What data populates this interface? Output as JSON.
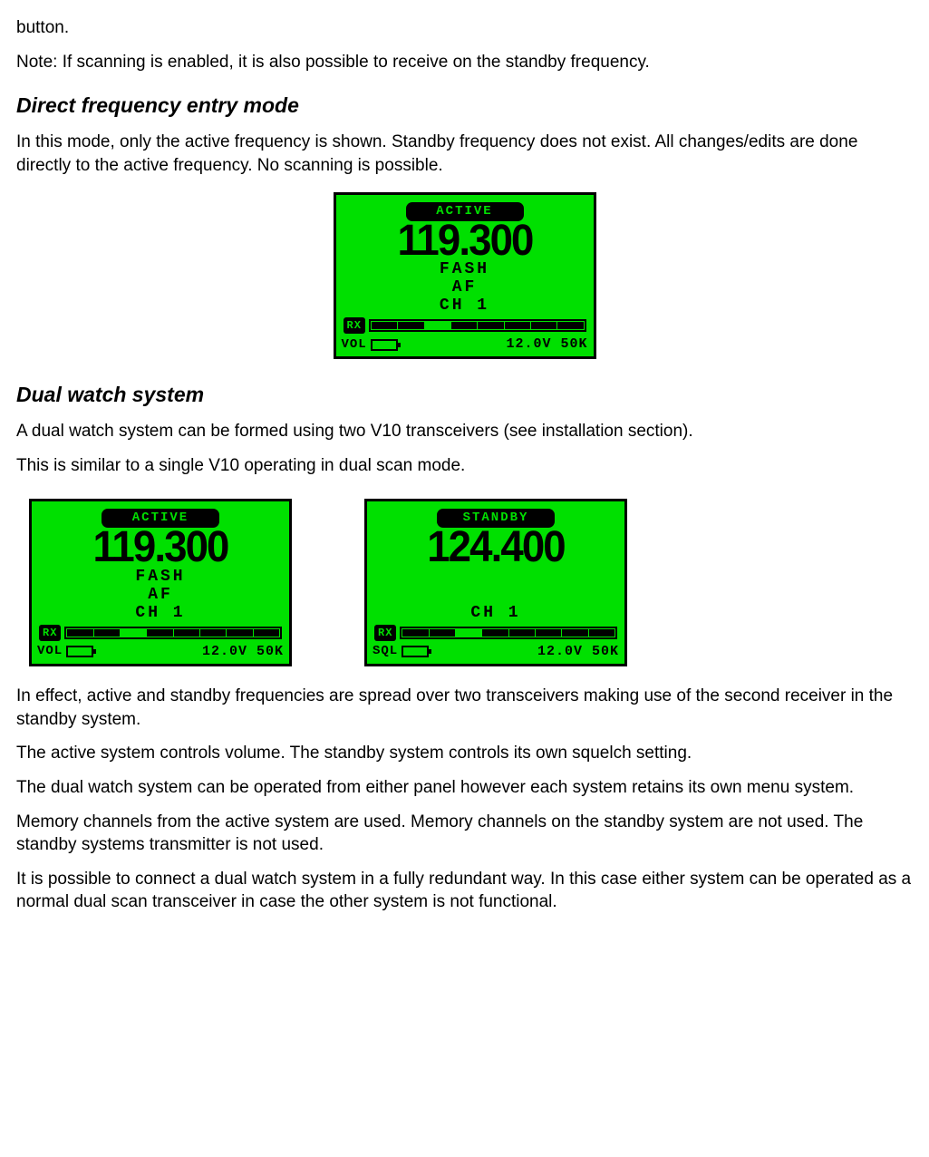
{
  "intro": {
    "p1": "button.",
    "p2": "Note: If scanning is enabled, it is also possible to receive on the standby frequency."
  },
  "section1": {
    "heading": "Direct frequency entry mode",
    "p1": "In this mode, only the active frequency is shown. Standby frequency does not exist. All changes/edits are done directly to the active frequency. No scanning is possible."
  },
  "section2": {
    "heading": "Dual watch system",
    "p1": "A dual watch system can be formed using two V10 transceivers (see installation section).",
    "p2": "This is similar to a single V10 operating in dual scan mode.",
    "p3": "In effect, active and standby frequencies are spread over two transceivers making use of the second receiver in the standby system.",
    "p4": "The active system controls volume. The standby system controls its own squelch setting.",
    "p5": "The dual watch system can be operated from either panel however each system retains its own menu system.",
    "p6": "Memory channels from the active system are used. Memory channels on the standby system are not used. The standby systems transmitter is not used.",
    "p7": "It is possible to connect a dual watch system in a fully redundant way. In this case either system can be operated as a normal dual scan transceiver in case the other system is not functional."
  },
  "display1": {
    "header": "ACTIVE",
    "freq": "119.300",
    "line1": "FASH",
    "line2": "AF",
    "line3": "CH  1",
    "rx_label": "RX",
    "vol_label": "VOL",
    "voltage": "12.0V 50K",
    "bg_color": "#00e000",
    "rx_segments": [
      true,
      true,
      false,
      true,
      true,
      true,
      true,
      true
    ]
  },
  "display2": {
    "header": "ACTIVE",
    "freq": "119.300",
    "line1": "FASH",
    "line2": "AF",
    "line3": "CH  1",
    "rx_label": "RX",
    "vol_label": "VOL",
    "voltage": "12.0V 50K",
    "bg_color": "#00e000",
    "rx_segments": [
      true,
      true,
      false,
      true,
      true,
      true,
      true,
      true
    ]
  },
  "display3": {
    "header": "STANDBY",
    "freq": "124.400",
    "line1": "",
    "line2": "",
    "line3": "CH  1",
    "rx_label": "RX",
    "vol_label": "SQL",
    "voltage": "12.0V 50K",
    "bg_color": "#00e000",
    "rx_segments": [
      true,
      true,
      false,
      true,
      true,
      true,
      true,
      true
    ]
  }
}
